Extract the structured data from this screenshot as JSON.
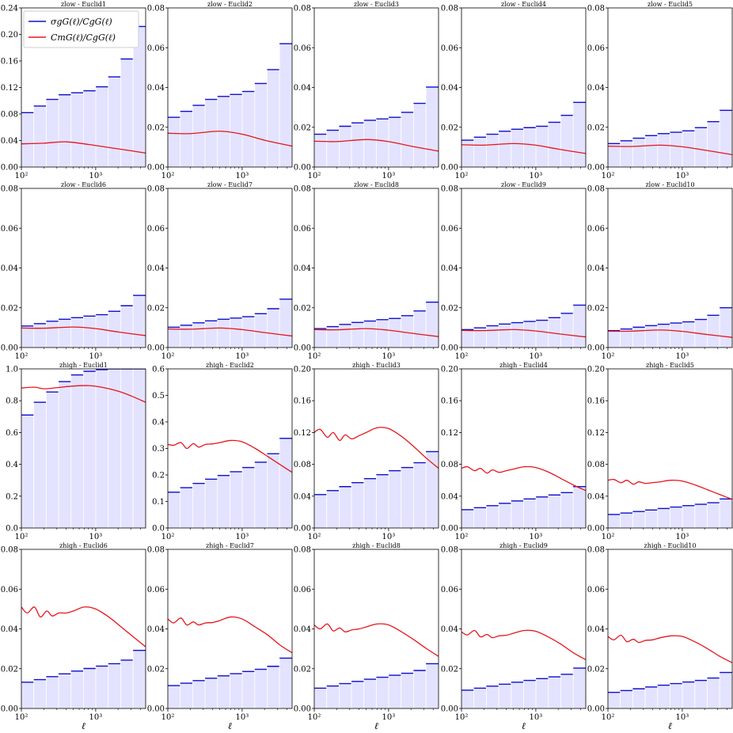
{
  "legend": {
    "sigma_label": "σgG(ℓ)/CgG(ℓ)",
    "cmg_label": "CmG(ℓ)/CgG(ℓ)"
  },
  "colors": {
    "band_fill": "#e3e3ff",
    "bin_line": "#1010cc",
    "curve": "#e8141c"
  },
  "chart_data": {
    "type": "bar",
    "grid": false,
    "legend_placement": "top-left of first panel",
    "xlabel": "ℓ",
    "xscale": "log",
    "xlim": [
      100,
      4700
    ],
    "x_ticks": [
      {
        "value": 100,
        "label": "10²"
      },
      {
        "value": 1000,
        "label": "10³"
      }
    ],
    "bin_edges": [
      100,
      147,
      216,
      317,
      466,
      684,
      1005,
      1476,
      2168,
      3184,
      4700
    ],
    "panels": [
      {
        "title": "zlow - Euclid1",
        "ylim": [
          0,
          0.24
        ],
        "yticks": [
          "0.00",
          "0.04",
          "0.08",
          "0.12",
          "0.16",
          "0.20",
          "0.24"
        ],
        "sigma": [
          0.082,
          0.092,
          0.102,
          0.109,
          0.112,
          0.115,
          0.121,
          0.136,
          0.163,
          0.212
        ],
        "cmg_x": [
          100,
          200,
          400,
          800,
          1600,
          3200,
          4700
        ],
        "cmg_y": [
          0.035,
          0.036,
          0.038,
          0.034,
          0.029,
          0.024,
          0.021
        ]
      },
      {
        "title": "zlow - Euclid2",
        "ylim": [
          0,
          0.08
        ],
        "yticks": [
          "0.00",
          "0.02",
          "0.04",
          "0.06",
          "0.08"
        ],
        "sigma": [
          0.025,
          0.028,
          0.031,
          0.034,
          0.0355,
          0.0365,
          0.038,
          0.042,
          0.049,
          0.062
        ],
        "cmg_x": [
          100,
          200,
          500,
          1000,
          2000,
          4700
        ],
        "cmg_y": [
          0.017,
          0.0168,
          0.018,
          0.0165,
          0.0135,
          0.0105
        ]
      },
      {
        "title": "zlow - Euclid3",
        "ylim": [
          0,
          0.08
        ],
        "yticks": [
          "0.00",
          "0.02",
          "0.04",
          "0.06",
          "0.08"
        ],
        "sigma": [
          0.0165,
          0.0185,
          0.0205,
          0.0222,
          0.0235,
          0.0242,
          0.025,
          0.0275,
          0.032,
          0.0402
        ],
        "cmg_x": [
          100,
          200,
          500,
          1000,
          2000,
          4700
        ],
        "cmg_y": [
          0.013,
          0.0128,
          0.0138,
          0.0128,
          0.0105,
          0.008
        ]
      },
      {
        "title": "zlow - Euclid4",
        "ylim": [
          0,
          0.08
        ],
        "yticks": [
          "0.00",
          "0.02",
          "0.04",
          "0.06",
          "0.08"
        ],
        "sigma": [
          0.0135,
          0.015,
          0.0165,
          0.018,
          0.019,
          0.0198,
          0.0205,
          0.0225,
          0.026,
          0.0325
        ],
        "cmg_x": [
          100,
          200,
          500,
          1000,
          2000,
          4700
        ],
        "cmg_y": [
          0.0112,
          0.011,
          0.0118,
          0.011,
          0.009,
          0.0068
        ]
      },
      {
        "title": "zlow - Euclid5",
        "ylim": [
          0,
          0.08
        ],
        "yticks": [
          "0.00",
          "0.02",
          "0.04",
          "0.06",
          "0.08"
        ],
        "sigma": [
          0.0118,
          0.0132,
          0.0145,
          0.0158,
          0.0168,
          0.0175,
          0.0182,
          0.0198,
          0.0228,
          0.0285
        ],
        "cmg_x": [
          100,
          200,
          500,
          1000,
          2000,
          4700
        ],
        "cmg_y": [
          0.0105,
          0.0103,
          0.011,
          0.0102,
          0.0085,
          0.0062
        ]
      },
      {
        "title": "zlow - Euclid6",
        "ylim": [
          0,
          0.08
        ],
        "yticks": [
          "0.00",
          "0.02",
          "0.04",
          "0.06",
          "0.08"
        ],
        "sigma": [
          0.0108,
          0.012,
          0.0132,
          0.0142,
          0.015,
          0.0158,
          0.0165,
          0.0182,
          0.021,
          0.0262
        ],
        "cmg_x": [
          100,
          200,
          500,
          1000,
          2000,
          4700
        ],
        "cmg_y": [
          0.0098,
          0.0097,
          0.0103,
          0.0095,
          0.0078,
          0.006
        ]
      },
      {
        "title": "zlow - Euclid7",
        "ylim": [
          0,
          0.08
        ],
        "yticks": [
          "0.00",
          "0.02",
          "0.04",
          "0.06",
          "0.08"
        ],
        "sigma": [
          0.0102,
          0.0112,
          0.0124,
          0.0134,
          0.0142,
          0.0148,
          0.0155,
          0.017,
          0.0195,
          0.0243
        ],
        "cmg_x": [
          100,
          200,
          500,
          1000,
          2000,
          4700
        ],
        "cmg_y": [
          0.0093,
          0.0092,
          0.0098,
          0.009,
          0.0075,
          0.0058
        ]
      },
      {
        "title": "zlow - Euclid8",
        "ylim": [
          0,
          0.08
        ],
        "yticks": [
          "0.00",
          "0.02",
          "0.04",
          "0.06",
          "0.08"
        ],
        "sigma": [
          0.0095,
          0.0105,
          0.0116,
          0.0126,
          0.0133,
          0.014,
          0.0146,
          0.016,
          0.0184,
          0.0228
        ],
        "cmg_x": [
          100,
          200,
          500,
          1000,
          2000,
          4700
        ],
        "cmg_y": [
          0.009,
          0.0089,
          0.0095,
          0.0087,
          0.0072,
          0.0055
        ]
      },
      {
        "title": "zlow - Euclid9",
        "ylim": [
          0,
          0.08
        ],
        "yticks": [
          "0.00",
          "0.02",
          "0.04",
          "0.06",
          "0.08"
        ],
        "sigma": [
          0.009,
          0.0099,
          0.0109,
          0.0118,
          0.0125,
          0.0131,
          0.0137,
          0.015,
          0.0172,
          0.0213
        ],
        "cmg_x": [
          100,
          200,
          500,
          1000,
          2000,
          4700
        ],
        "cmg_y": [
          0.0086,
          0.0085,
          0.009,
          0.0083,
          0.0069,
          0.0053
        ]
      },
      {
        "title": "zlow - Euclid10",
        "ylim": [
          0,
          0.08
        ],
        "yticks": [
          "0.00",
          "0.02",
          "0.04",
          "0.06",
          "0.08"
        ],
        "sigma": [
          0.0085,
          0.0093,
          0.0102,
          0.011,
          0.0117,
          0.0123,
          0.0129,
          0.0141,
          0.0162,
          0.02
        ],
        "cmg_x": [
          100,
          200,
          500,
          1000,
          2000,
          4700
        ],
        "cmg_y": [
          0.0082,
          0.0082,
          0.0088,
          0.0081,
          0.0067,
          0.0051
        ]
      },
      {
        "title": "zhigh - Euclid1",
        "ylim": [
          0,
          1.0
        ],
        "yticks": [
          "0.0",
          "0.2",
          "0.4",
          "0.6",
          "0.8",
          "1.0"
        ],
        "sigma": [
          0.71,
          0.79,
          0.855,
          0.92,
          0.962,
          0.985,
          0.995,
          1.0,
          1.0,
          1.0
        ],
        "cmg_x": [
          100,
          150,
          200,
          300,
          500,
          800,
          1200,
          2000,
          3000,
          4700
        ],
        "cmg_y": [
          0.88,
          0.885,
          0.875,
          0.882,
          0.892,
          0.895,
          0.885,
          0.86,
          0.83,
          0.79
        ]
      },
      {
        "title": "zhigh - Euclid2",
        "ylim": [
          0,
          0.6
        ],
        "yticks": [
          "0.0",
          "0.1",
          "0.2",
          "0.3",
          "0.4",
          "0.5",
          "0.6"
        ],
        "sigma": [
          0.135,
          0.152,
          0.168,
          0.184,
          0.198,
          0.212,
          0.228,
          0.248,
          0.28,
          0.338
        ],
        "cmg_x": [
          100,
          120,
          150,
          180,
          220,
          260,
          320,
          400,
          500,
          700,
          1000,
          1500,
          2200,
          3200,
          4700
        ],
        "cmg_y": [
          0.315,
          0.312,
          0.322,
          0.3,
          0.318,
          0.305,
          0.315,
          0.317,
          0.322,
          0.33,
          0.325,
          0.3,
          0.27,
          0.24,
          0.21
        ]
      },
      {
        "title": "zhigh - Euclid3",
        "ylim": [
          0,
          0.2
        ],
        "yticks": [
          "0.00",
          "0.04",
          "0.08",
          "0.12",
          "0.16",
          "0.20"
        ],
        "sigma": [
          0.042,
          0.047,
          0.052,
          0.057,
          0.062,
          0.067,
          0.072,
          0.076,
          0.082,
          0.096
        ],
        "cmg_x": [
          100,
          120,
          150,
          180,
          220,
          260,
          320,
          400,
          500,
          700,
          1000,
          1500,
          2200,
          3200,
          4700
        ],
        "cmg_y": [
          0.12,
          0.124,
          0.114,
          0.12,
          0.11,
          0.117,
          0.112,
          0.116,
          0.12,
          0.126,
          0.125,
          0.115,
          0.102,
          0.088,
          0.075
        ]
      },
      {
        "title": "zhigh - Euclid4",
        "ylim": [
          0,
          0.2
        ],
        "yticks": [
          "0.00",
          "0.04",
          "0.08",
          "0.12",
          "0.16",
          "0.20"
        ],
        "sigma": [
          0.023,
          0.0255,
          0.028,
          0.031,
          0.034,
          0.0365,
          0.039,
          0.0415,
          0.0445,
          0.052
        ],
        "cmg_x": [
          100,
          120,
          150,
          180,
          220,
          260,
          320,
          400,
          500,
          700,
          1000,
          1500,
          2200,
          3200,
          4700
        ],
        "cmg_y": [
          0.075,
          0.077,
          0.072,
          0.075,
          0.069,
          0.073,
          0.07,
          0.072,
          0.074,
          0.077,
          0.076,
          0.07,
          0.062,
          0.054,
          0.047
        ]
      },
      {
        "title": "zhigh - Euclid5",
        "ylim": [
          0,
          0.2
        ],
        "yticks": [
          "0.00",
          "0.04",
          "0.08",
          "0.12",
          "0.16",
          "0.20"
        ],
        "sigma": [
          0.017,
          0.0188,
          0.0207,
          0.0226,
          0.0245,
          0.0263,
          0.0281,
          0.0298,
          0.0318,
          0.0365
        ],
        "cmg_x": [
          100,
          120,
          150,
          180,
          220,
          260,
          320,
          400,
          500,
          700,
          1000,
          1500,
          2200,
          3200,
          4700
        ],
        "cmg_y": [
          0.06,
          0.061,
          0.057,
          0.06,
          0.055,
          0.058,
          0.056,
          0.057,
          0.058,
          0.06,
          0.059,
          0.054,
          0.048,
          0.042,
          0.036
        ]
      },
      {
        "title": "zhigh - Euclid6",
        "ylim": [
          0,
          0.08
        ],
        "yticks": [
          "0.00",
          "0.02",
          "0.04",
          "0.06",
          "0.08"
        ],
        "sigma": [
          0.0132,
          0.0145,
          0.016,
          0.0174,
          0.0188,
          0.0201,
          0.0213,
          0.0225,
          0.0243,
          0.0292
        ],
        "cmg_x": [
          100,
          120,
          150,
          180,
          220,
          260,
          320,
          400,
          500,
          700,
          1000,
          1500,
          2200,
          3200,
          4700
        ],
        "cmg_y": [
          0.051,
          0.048,
          0.051,
          0.046,
          0.049,
          0.0465,
          0.048,
          0.048,
          0.049,
          0.051,
          0.05,
          0.046,
          0.041,
          0.036,
          0.031
        ]
      },
      {
        "title": "zhigh - Euclid7",
        "ylim": [
          0,
          0.08
        ],
        "yticks": [
          "0.00",
          "0.02",
          "0.04",
          "0.06",
          "0.08"
        ],
        "sigma": [
          0.0115,
          0.0127,
          0.014,
          0.0152,
          0.0164,
          0.0175,
          0.0186,
          0.0197,
          0.0212,
          0.0253
        ],
        "cmg_x": [
          100,
          120,
          150,
          180,
          220,
          260,
          320,
          400,
          500,
          700,
          1000,
          1500,
          2200,
          3200,
          4700
        ],
        "cmg_y": [
          0.045,
          0.043,
          0.0455,
          0.042,
          0.0435,
          0.042,
          0.043,
          0.0432,
          0.0442,
          0.046,
          0.045,
          0.041,
          0.037,
          0.032,
          0.028
        ]
      },
      {
        "title": "zhigh - Euclid8",
        "ylim": [
          0,
          0.08
        ],
        "yticks": [
          "0.00",
          "0.02",
          "0.04",
          "0.06",
          "0.08"
        ],
        "sigma": [
          0.0102,
          0.0113,
          0.0125,
          0.0136,
          0.0147,
          0.0157,
          0.0167,
          0.0177,
          0.0191,
          0.0225
        ],
        "cmg_x": [
          100,
          120,
          150,
          180,
          220,
          260,
          320,
          400,
          500,
          700,
          1000,
          1500,
          2200,
          3200,
          4700
        ],
        "cmg_y": [
          0.042,
          0.04,
          0.0425,
          0.039,
          0.0405,
          0.0385,
          0.0395,
          0.04,
          0.041,
          0.0425,
          0.042,
          0.0385,
          0.0345,
          0.0302,
          0.0262
        ]
      },
      {
        "title": "zhigh - Euclid9",
        "ylim": [
          0,
          0.08
        ],
        "yticks": [
          "0.00",
          "0.02",
          "0.04",
          "0.06",
          "0.08"
        ],
        "sigma": [
          0.0092,
          0.0102,
          0.0112,
          0.0122,
          0.0132,
          0.0141,
          0.015,
          0.0159,
          0.0172,
          0.0203
        ],
        "cmg_x": [
          100,
          120,
          150,
          180,
          220,
          260,
          320,
          400,
          500,
          700,
          1000,
          1500,
          2200,
          3200,
          4700
        ],
        "cmg_y": [
          0.0385,
          0.037,
          0.0392,
          0.036,
          0.0372,
          0.0356,
          0.0365,
          0.0368,
          0.0378,
          0.0392,
          0.0388,
          0.0358,
          0.0322,
          0.028,
          0.0245
        ]
      },
      {
        "title": "zhigh - Euclid10",
        "ylim": [
          0,
          0.08
        ],
        "yticks": [
          "0.00",
          "0.02",
          "0.04",
          "0.06",
          "0.08"
        ],
        "sigma": [
          0.0081,
          0.009,
          0.0099,
          0.0108,
          0.0117,
          0.0125,
          0.0133,
          0.0141,
          0.0153,
          0.0181
        ],
        "cmg_x": [
          100,
          120,
          150,
          180,
          220,
          260,
          320,
          400,
          500,
          700,
          1000,
          1500,
          2200,
          3200,
          4700
        ],
        "cmg_y": [
          0.0362,
          0.0345,
          0.0368,
          0.0336,
          0.0348,
          0.0332,
          0.0342,
          0.0345,
          0.0355,
          0.0365,
          0.0362,
          0.0334,
          0.03,
          0.0262,
          0.023
        ]
      }
    ]
  }
}
